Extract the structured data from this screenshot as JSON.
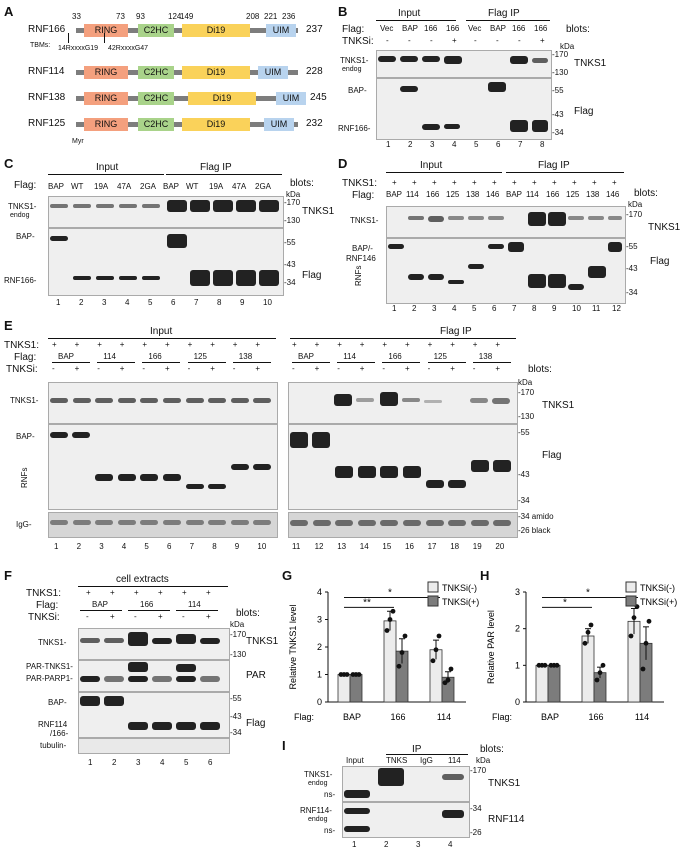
{
  "panels": {
    "A": "A",
    "B": "B",
    "C": "C",
    "D": "D",
    "E": "E",
    "F": "F",
    "G": "G",
    "H": "H",
    "I": "I"
  },
  "A": {
    "proteins": [
      {
        "name": "RNF166",
        "len": "237"
      },
      {
        "name": "RNF114",
        "len": "228"
      },
      {
        "name": "RNF138",
        "len": "245"
      },
      {
        "name": "RNF125",
        "len": "232"
      }
    ],
    "domains": {
      "ring": "RING",
      "c2hc": "C2HC",
      "di19": "Di19",
      "uim": "UIM"
    },
    "positions": [
      "33",
      "73",
      "93",
      "124",
      "149",
      "208",
      "221",
      "236"
    ],
    "tbms_label": "TBMs:",
    "tbm1": "14RxxxxG19",
    "tbm2": "42RxxxxG47",
    "myr": "Myr"
  },
  "B": {
    "input": "Input",
    "flagip": "Flag IP",
    "flag_row": "Flag:",
    "tnksi_row": "TNKSi:",
    "flag": [
      "Vec",
      "BAP",
      "166",
      "166",
      "Vec",
      "BAP",
      "166",
      "166"
    ],
    "tnksi": [
      "-",
      "-",
      "-",
      "+",
      "-",
      "-",
      "-",
      "+"
    ],
    "blots": "blots:",
    "kda": "kDa",
    "m170": "-170",
    "m130": "-130",
    "m55": "-55",
    "m43": "-43",
    "m34": "-34",
    "tnks1": "TNKS1-",
    "endog": "endog",
    "bap": "BAP-",
    "rnf166": "RNF166-",
    "blot_tnks1": "TNKS1",
    "blot_flag": "Flag",
    "lanes": [
      "1",
      "2",
      "3",
      "4",
      "5",
      "6",
      "7",
      "8"
    ]
  },
  "C": {
    "input": "Input",
    "flagip": "Flag IP",
    "flag_row": "Flag:",
    "flag": [
      "BAP",
      "WT",
      "19A",
      "47A",
      "2GA",
      "BAP",
      "WT",
      "19A",
      "47A",
      "2GA"
    ],
    "blots": "blots:",
    "kda": "kDa",
    "m170": "-170",
    "m130": "-130",
    "m55": "-55",
    "m43": "-43",
    "m34": "-34",
    "tnks1": "TNKS1-",
    "endog": "endog",
    "bap": "BAP-",
    "rnf166": "RNF166-",
    "blot_tnks1": "TNKS1",
    "blot_flag": "Flag",
    "lanes": [
      "1",
      "2",
      "3",
      "4",
      "5",
      "6",
      "7",
      "8",
      "9",
      "10"
    ]
  },
  "D": {
    "input": "Input",
    "flagip": "Flag IP",
    "tnks_row": "TNKS1:",
    "flag_row": "Flag:",
    "flag": [
      "BAP",
      "114",
      "166",
      "125",
      "138",
      "146",
      "BAP",
      "114",
      "166",
      "125",
      "138",
      "146"
    ],
    "plus": "+",
    "blots": "blots:",
    "kda": "kDa",
    "m170": "-170",
    "m55": "-55",
    "m43": "-43",
    "m34": "-34",
    "tnks1": "TNKS1-",
    "bap": "BAP/-",
    "rnf146": "RNF146",
    "rnfs": "RNFs",
    "blot_tnks1": "TNKS1",
    "blot_flag": "Flag",
    "lanes": [
      "1",
      "2",
      "3",
      "4",
      "5",
      "6",
      "7",
      "8",
      "9",
      "10",
      "11",
      "12"
    ]
  },
  "E": {
    "input": "Input",
    "flagip": "Flag IP",
    "tnks_row": "TNKS1:",
    "flag_row": "Flag:",
    "tnksi_row": "TNKSi:",
    "groups": [
      "BAP",
      "114",
      "166",
      "125",
      "138"
    ],
    "minus": "-",
    "plus": "+",
    "blots": "blots:",
    "kda": "kDa",
    "m170": "-170",
    "m130": "-130",
    "m55": "-55",
    "m43": "-43",
    "m34": "-34",
    "m26": "-26",
    "tnks1": "TNKS1-",
    "bap": "BAP-",
    "rnfs": "RNFs",
    "igg": "IgG-",
    "blot_tnks1": "TNKS1",
    "blot_flag": "Flag",
    "amido": "-34 amido",
    "black": "-26 black",
    "lanes": [
      "1",
      "2",
      "3",
      "4",
      "5",
      "6",
      "7",
      "8",
      "9",
      "10",
      "11",
      "12",
      "13",
      "14",
      "15",
      "16",
      "17",
      "18",
      "19",
      "20"
    ]
  },
  "F": {
    "title": "cell extracts",
    "tnks_row": "TNKS1:",
    "flag_row": "Flag:",
    "tnksi_row": "TNKSi:",
    "groups": [
      "BAP",
      "166",
      "114"
    ],
    "plus": "+",
    "minus": "-",
    "blots": "blots:",
    "kda": "kDa",
    "m170": "-170",
    "m130": "-130",
    "m55": "-55",
    "m43": "-43",
    "m34": "-34",
    "tnks1": "TNKS1-",
    "partnks1": "PAR-TNKS1-",
    "parparp1": "PAR-PARP1-",
    "bap": "BAP-",
    "rnf114": "RNF114",
    "rnf166": "/166-",
    "tubulin": "tubulin-",
    "blot_tnks1": "TNKS1",
    "blot_par": "PAR",
    "blot_flag": "Flag",
    "lanes": [
      "1",
      "2",
      "3",
      "4",
      "5",
      "6"
    ]
  },
  "G": {
    "ylabel": "Relative TNKS1 level",
    "flag": "Flag:",
    "cats": [
      "BAP",
      "166",
      "114"
    ],
    "legend": [
      "TNKSi(-)",
      "TNKSi(+)"
    ],
    "sig1": "**",
    "sig2": "*",
    "yticks": [
      "0",
      "1",
      "2",
      "3",
      "4"
    ],
    "ylim": [
      0,
      4
    ],
    "values": {
      "minus": [
        1,
        2.95,
        1.9
      ],
      "plus": [
        1,
        1.85,
        0.9
      ]
    },
    "err": {
      "minus": [
        0,
        0.35,
        0.35
      ],
      "plus": [
        0,
        0.45,
        0.2
      ]
    },
    "points": {
      "minus": [
        [
          1,
          1,
          1
        ],
        [
          2.6,
          3.0,
          3.3
        ],
        [
          1.5,
          1.9,
          2.4
        ]
      ],
      "plus": [
        [
          1,
          1,
          1
        ],
        [
          1.3,
          1.8,
          2.4
        ],
        [
          0.7,
          0.8,
          1.2
        ]
      ]
    }
  },
  "H": {
    "ylabel": "Relative PAR level",
    "flag": "Flag:",
    "cats": [
      "BAP",
      "166",
      "114"
    ],
    "legend": [
      "TNKSi(-)",
      "TNKSi(+)"
    ],
    "sig1": "*",
    "sig2": "*",
    "yticks": [
      "0",
      "1",
      "2",
      "3"
    ],
    "ylim": [
      0,
      3
    ],
    "values": {
      "minus": [
        1,
        1.8,
        2.2
      ],
      "plus": [
        1,
        0.8,
        1.6
      ]
    },
    "err": {
      "minus": [
        0,
        0.2,
        0.35
      ],
      "plus": [
        0,
        0.15,
        0.45
      ]
    },
    "points": {
      "minus": [
        [
          1,
          1,
          1
        ],
        [
          1.6,
          1.9,
          2.1
        ],
        [
          1.8,
          2.3,
          2.6
        ]
      ],
      "plus": [
        [
          1,
          1,
          1
        ],
        [
          0.6,
          0.8,
          1.0
        ],
        [
          0.9,
          1.6,
          2.2
        ]
      ]
    }
  },
  "I": {
    "ip": "IP",
    "blots": "blots:",
    "kda": "kDa",
    "lanes_top": [
      "Input",
      "TNKS",
      "IgG",
      "114"
    ],
    "tnks1": "TNKS1-",
    "endog": "endog",
    "ns1": "ns-",
    "rnf114": "RNF114-",
    "endog2": "endog",
    "ns2": "ns-",
    "m170": "-170",
    "m130": "-130",
    "m34": "-34",
    "m26": "-26",
    "blot_tnks1": "TNKS1",
    "blot_rnf114": "RNF114",
    "lanes": [
      "1",
      "2",
      "3",
      "4"
    ]
  },
  "colors": {
    "ring": "#f4a07e",
    "c2hc": "#a9d38a",
    "di19": "#fad25a",
    "uim": "#b8d3ee",
    "light_bar": "#ececec",
    "dark_bar": "#7c7c7c"
  }
}
